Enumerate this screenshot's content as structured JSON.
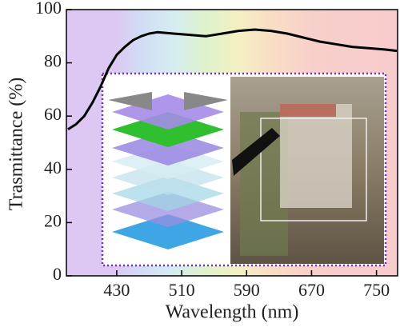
{
  "chart_data": {
    "type": "line",
    "x": [
      370,
      380,
      390,
      400,
      410,
      420,
      430,
      440,
      450,
      460,
      470,
      480,
      500,
      520,
      540,
      560,
      580,
      600,
      620,
      640,
      660,
      680,
      700,
      720,
      740,
      760,
      775
    ],
    "values": [
      55,
      57,
      60,
      65,
      71,
      78,
      83,
      86,
      88.5,
      90,
      91,
      91.5,
      91,
      90.5,
      90,
      91,
      92,
      92.5,
      92,
      91,
      89.5,
      88,
      87,
      86,
      85.5,
      85,
      84.5
    ],
    "color": "#000000",
    "xlim": [
      368,
      776
    ],
    "xticks": [
      430,
      510,
      590,
      670,
      750
    ],
    "ylim": [
      0,
      100
    ],
    "yticks": [
      0,
      20,
      40,
      60,
      80,
      100
    ],
    "x_label": "Wavelength (nm)",
    "y_label": "Trasmittance (%)"
  }
}
